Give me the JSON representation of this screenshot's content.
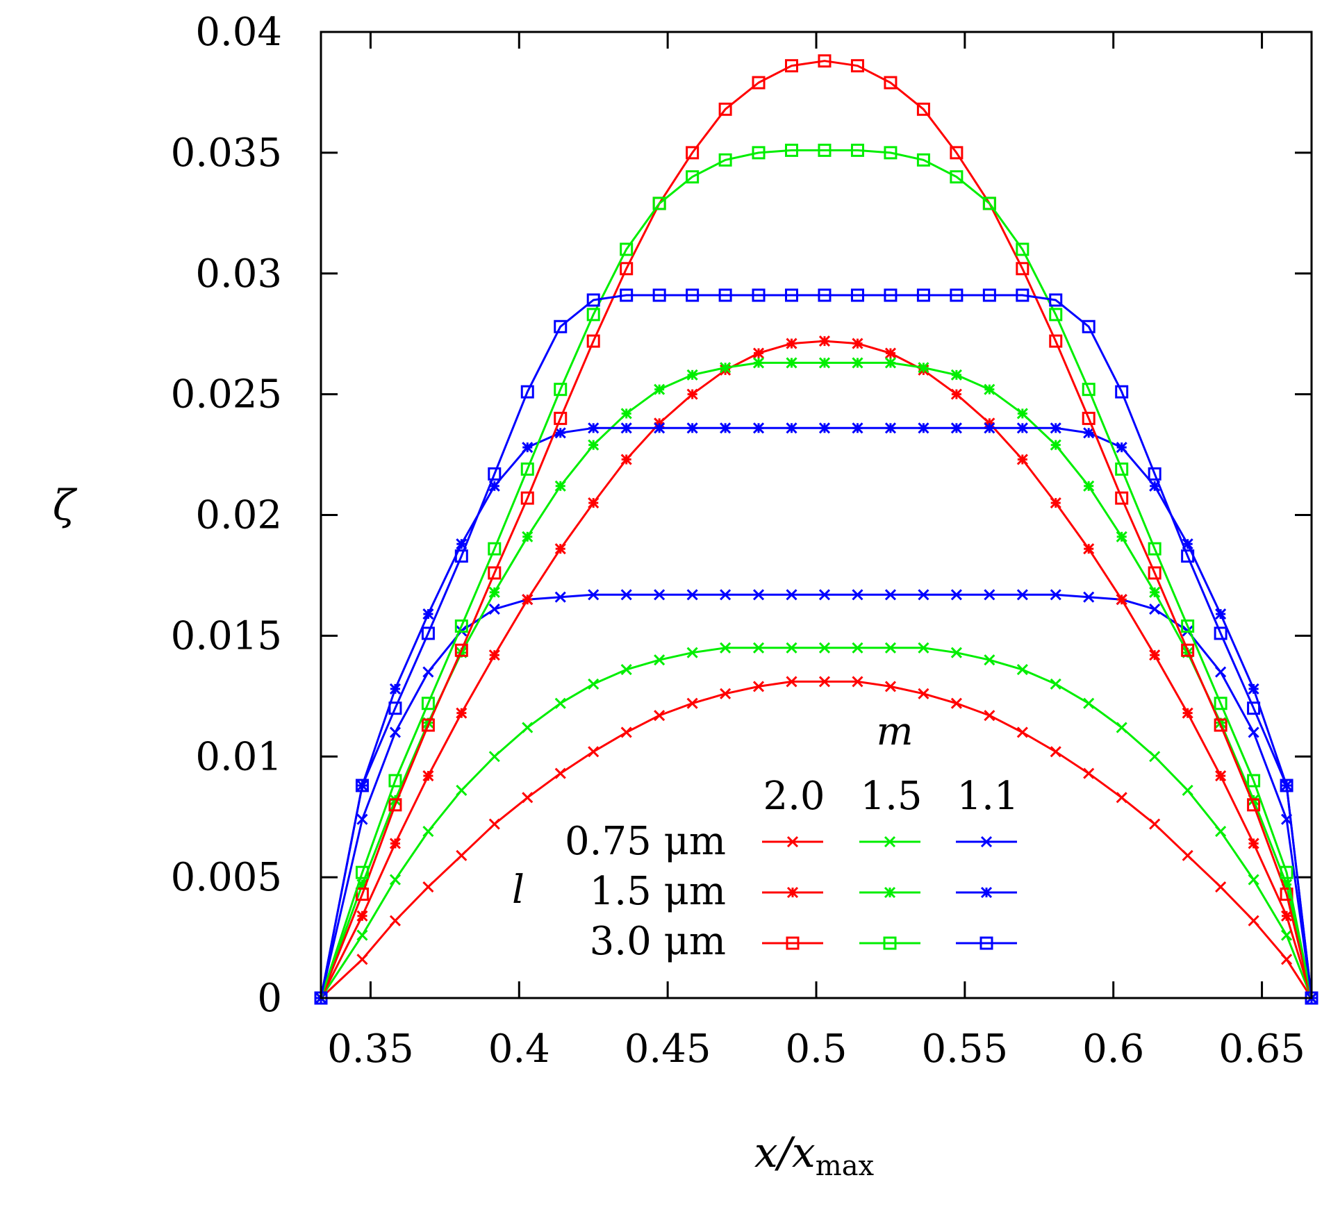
{
  "chart_data": {
    "type": "line",
    "xlabel": "x/x",
    "xlabel_sub": "max",
    "ylabel": "ζ",
    "xlim": [
      0.3333,
      0.6667
    ],
    "ylim": [
      0,
      0.04
    ],
    "x_ticks": [
      "0.35",
      "0.4",
      "0.45",
      "0.5",
      "0.55",
      "0.6",
      "0.65"
    ],
    "y_ticks": [
      "0",
      "0.005",
      "0.01",
      "0.015",
      "0.02",
      "0.025",
      "0.03",
      "0.035",
      "0.04"
    ],
    "x": [
      0.3333,
      0.3472,
      0.3583,
      0.3694,
      0.3806,
      0.3917,
      0.4028,
      0.4139,
      0.425,
      0.4361,
      0.4472,
      0.4583,
      0.4694,
      0.4806,
      0.4917,
      0.5028,
      0.5139,
      0.525,
      0.5361,
      0.5472,
      0.5583,
      0.5694,
      0.5806,
      0.5917,
      0.6028,
      0.6139,
      0.625,
      0.6361,
      0.6472,
      0.6583,
      0.6667
    ],
    "legend": {
      "m_label": "m",
      "l_label": "l",
      "m_values": [
        "2.0",
        "1.5",
        "1.1"
      ],
      "l_values": [
        "0.75 μm",
        "1.5 μm",
        "3.0 μm"
      ]
    },
    "colors": {
      "m2.0": "#ff0000",
      "m1.5": "#00ee00",
      "m1.1": "#0000ff"
    },
    "series": [
      {
        "name": "m=2.0, l=0.75 μm",
        "color": "#ff0000",
        "marker": "x",
        "values": [
          0,
          0.0016,
          0.0032,
          0.0046,
          0.0059,
          0.0072,
          0.0083,
          0.0093,
          0.0102,
          0.011,
          0.0117,
          0.0122,
          0.0126,
          0.0129,
          0.0131,
          0.0131,
          0.0131,
          0.0129,
          0.0126,
          0.0122,
          0.0117,
          0.011,
          0.0102,
          0.0093,
          0.0083,
          0.0072,
          0.0059,
          0.0046,
          0.0032,
          0.0016,
          0
        ]
      },
      {
        "name": "m=1.5, l=0.75 μm",
        "color": "#00ee00",
        "marker": "x",
        "values": [
          0,
          0.0026,
          0.0049,
          0.0069,
          0.0086,
          0.01,
          0.0112,
          0.0122,
          0.013,
          0.0136,
          0.014,
          0.0143,
          0.0145,
          0.0145,
          0.0145,
          0.0145,
          0.0145,
          0.0145,
          0.0145,
          0.0143,
          0.014,
          0.0136,
          0.013,
          0.0122,
          0.0112,
          0.01,
          0.0086,
          0.0069,
          0.0049,
          0.0026,
          0
        ]
      },
      {
        "name": "m=1.1, l=0.75 μm",
        "color": "#0000ff",
        "marker": "x",
        "values": [
          0,
          0.0074,
          0.011,
          0.0135,
          0.0152,
          0.0161,
          0.0165,
          0.0166,
          0.0167,
          0.0167,
          0.0167,
          0.0167,
          0.0167,
          0.0167,
          0.0167,
          0.0167,
          0.0167,
          0.0167,
          0.0167,
          0.0167,
          0.0167,
          0.0167,
          0.0167,
          0.0166,
          0.0165,
          0.0161,
          0.0152,
          0.0135,
          0.011,
          0.0074,
          0
        ]
      },
      {
        "name": "m=2.0, l=1.5 μm",
        "color": "#ff0000",
        "marker": "star",
        "values": [
          0,
          0.0034,
          0.0064,
          0.0092,
          0.0118,
          0.0142,
          0.0165,
          0.0186,
          0.0205,
          0.0223,
          0.0238,
          0.025,
          0.026,
          0.0267,
          0.0271,
          0.0272,
          0.0271,
          0.0267,
          0.026,
          0.025,
          0.0238,
          0.0223,
          0.0205,
          0.0186,
          0.0165,
          0.0142,
          0.0118,
          0.0092,
          0.0064,
          0.0034,
          0
        ]
      },
      {
        "name": "m=1.5, l=1.5 μm",
        "color": "#00ee00",
        "marker": "star",
        "values": [
          0,
          0.0047,
          0.0082,
          0.0114,
          0.0143,
          0.0168,
          0.0191,
          0.0212,
          0.0229,
          0.0242,
          0.0252,
          0.0258,
          0.0261,
          0.0263,
          0.0263,
          0.0263,
          0.0263,
          0.0263,
          0.0261,
          0.0258,
          0.0252,
          0.0242,
          0.0229,
          0.0212,
          0.0191,
          0.0168,
          0.0143,
          0.0114,
          0.0082,
          0.0047,
          0
        ]
      },
      {
        "name": "m=1.1, l=1.5 μm",
        "color": "#0000ff",
        "marker": "star",
        "values": [
          0,
          0.0088,
          0.0128,
          0.0159,
          0.0188,
          0.0212,
          0.0228,
          0.0234,
          0.0236,
          0.0236,
          0.0236,
          0.0236,
          0.0236,
          0.0236,
          0.0236,
          0.0236,
          0.0236,
          0.0236,
          0.0236,
          0.0236,
          0.0236,
          0.0236,
          0.0236,
          0.0234,
          0.0228,
          0.0212,
          0.0188,
          0.0159,
          0.0128,
          0.0088,
          0
        ]
      },
      {
        "name": "m=2.0, l=3.0 μm",
        "color": "#ff0000",
        "marker": "square",
        "values": [
          0,
          0.0043,
          0.008,
          0.0113,
          0.0144,
          0.0176,
          0.0207,
          0.024,
          0.0272,
          0.0302,
          0.0329,
          0.035,
          0.0368,
          0.0379,
          0.0386,
          0.0388,
          0.0386,
          0.0379,
          0.0368,
          0.035,
          0.0329,
          0.0302,
          0.0272,
          0.024,
          0.0207,
          0.0176,
          0.0144,
          0.0113,
          0.008,
          0.0043,
          0
        ]
      },
      {
        "name": "m=1.5, l=3.0 μm",
        "color": "#00ee00",
        "marker": "square",
        "values": [
          0,
          0.0052,
          0.009,
          0.0122,
          0.0154,
          0.0186,
          0.0219,
          0.0252,
          0.0283,
          0.031,
          0.0329,
          0.034,
          0.0347,
          0.035,
          0.0351,
          0.0351,
          0.0351,
          0.035,
          0.0347,
          0.034,
          0.0329,
          0.031,
          0.0283,
          0.0252,
          0.0219,
          0.0186,
          0.0154,
          0.0122,
          0.009,
          0.0052,
          0
        ]
      },
      {
        "name": "m=1.1, l=3.0 μm",
        "color": "#0000ff",
        "marker": "square",
        "values": [
          0,
          0.0088,
          0.012,
          0.0151,
          0.0183,
          0.0217,
          0.0251,
          0.0278,
          0.0289,
          0.0291,
          0.0291,
          0.0291,
          0.0291,
          0.0291,
          0.0291,
          0.0291,
          0.0291,
          0.0291,
          0.0291,
          0.0291,
          0.0291,
          0.0291,
          0.0289,
          0.0278,
          0.0251,
          0.0217,
          0.0183,
          0.0151,
          0.012,
          0.0088,
          0
        ]
      }
    ]
  }
}
